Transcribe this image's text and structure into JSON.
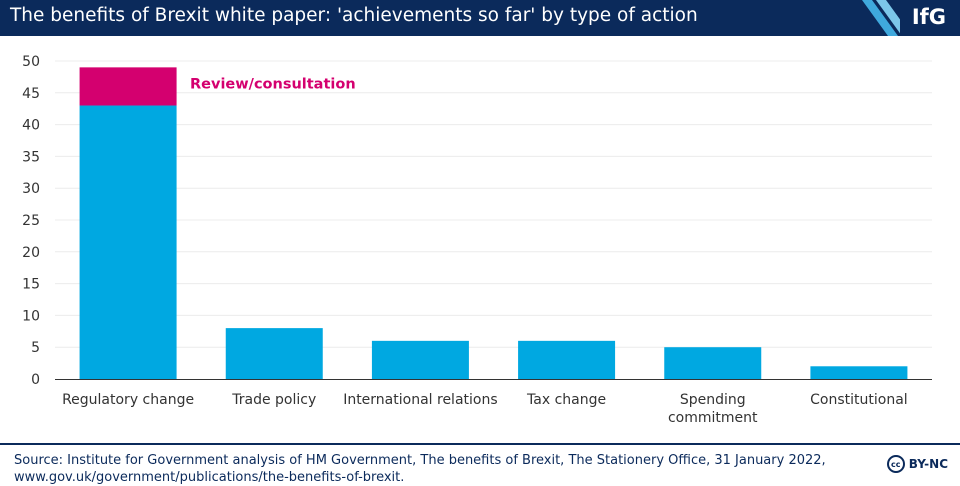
{
  "header": {
    "title": "The benefits of Brexit white paper: 'achievements so far' by type of action",
    "logo": "IfG"
  },
  "colors": {
    "header_bg": "#0b2a5b",
    "bar": "#00a8e1",
    "highlight": "#d4006f",
    "axis": "#333333",
    "grid": "#ececec"
  },
  "chart_data": {
    "type": "bar",
    "stacked": true,
    "categories": [
      "Regulatory change",
      "Trade policy",
      "International relations",
      "Tax change",
      "Spending commitment",
      "Constitutional"
    ],
    "series": [
      {
        "name": "",
        "color": "#00a8e1",
        "values": [
          43,
          8,
          6,
          6,
          5,
          2
        ]
      },
      {
        "name": "Review/consultation",
        "color": "#d4006f",
        "values": [
          6,
          0,
          0,
          0,
          0,
          0
        ]
      }
    ],
    "annotation": "Review/consultation",
    "ylim": [
      0,
      50
    ],
    "yticks": [
      0,
      5,
      10,
      15,
      20,
      25,
      30,
      35,
      40,
      45,
      50
    ],
    "grid": true,
    "xlabel": "",
    "ylabel": ""
  },
  "footer": {
    "source": "Source: Institute for Government analysis of HM Government, The benefits of Brexit, The Stationery Office, 31 January 2022, www.gov.uk/government/publications/the-benefits-of-brexit.",
    "license_icon": "cc",
    "license": "BY-NC"
  }
}
